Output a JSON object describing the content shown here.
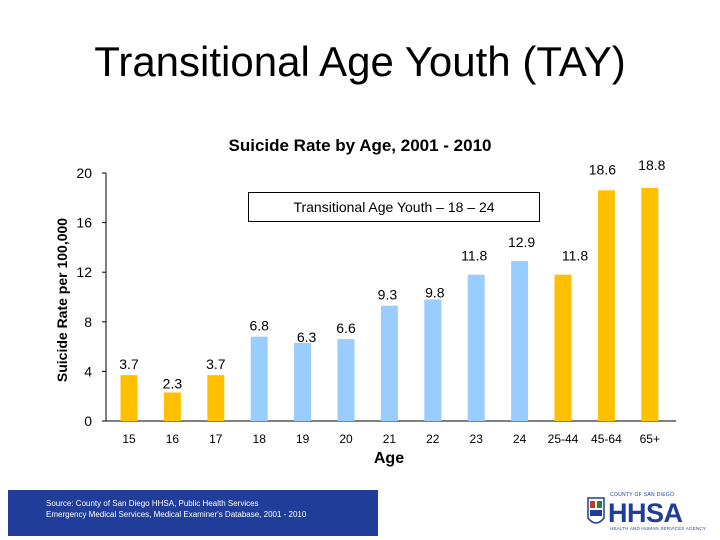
{
  "slide_title": "Transitional Age Youth (TAY)",
  "chart_data": {
    "type": "bar",
    "title": "Suicide Rate by Age, 2001 - 2010",
    "xlabel": "Age",
    "ylabel": "Suicide Rate per 100,000",
    "ylim": [
      0,
      20
    ],
    "yticks": [
      0,
      4,
      8,
      12,
      16,
      20
    ],
    "categories": [
      "15",
      "16",
      "17",
      "18",
      "19",
      "20",
      "21",
      "22",
      "23",
      "24",
      "25-44",
      "45-64",
      "65+"
    ],
    "values": [
      3.7,
      2.3,
      3.7,
      6.8,
      6.3,
      6.6,
      9.3,
      9.8,
      11.8,
      12.9,
      11.8,
      18.6,
      18.8
    ],
    "data_labels": [
      "3.7",
      "2.3",
      "3.7",
      "6.8",
      "6.3",
      "6.6",
      "9.3",
      "9.8",
      "11.8",
      "12.9",
      "11.8",
      "18.6",
      "18.8"
    ],
    "bar_colors": [
      "#FFC000",
      "#FFC000",
      "#FFC000",
      "#99CCFF",
      "#99CCFF",
      "#99CCFF",
      "#99CCFF",
      "#99CCFF",
      "#99CCFF",
      "#99CCFF",
      "#FFC000",
      "#FFC000",
      "#FFC000"
    ],
    "annotation": "Transitional Age Youth – 18 – 24",
    "grid": false
  },
  "source": {
    "line1": "Source: County of San Diego HHSA, Public Health Services",
    "line2": "Emergency Medical Services, Medical Examiner's Database, 2001 - 2010"
  },
  "logo": {
    "county": "COUNTY OF SAN DIEGO",
    "name": "HHSA",
    "agency": "HEALTH AND HUMAN SERVICES AGENCY"
  },
  "colors": {
    "source_bg": "#1f3d99",
    "tay_bar": "#99CCFF",
    "other_bar": "#FFC000"
  }
}
